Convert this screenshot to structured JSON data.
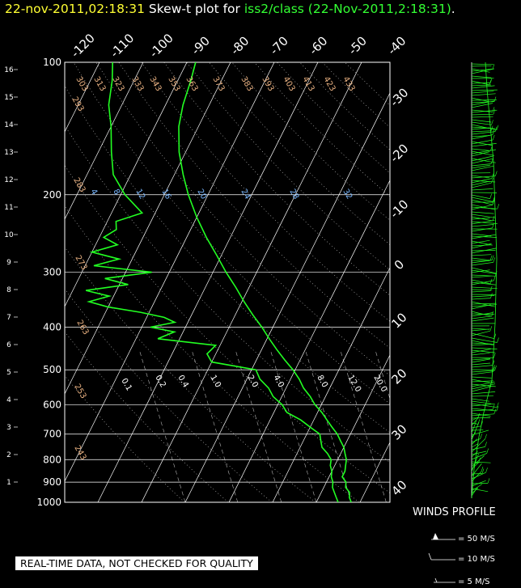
{
  "header": {
    "time": "22-nov-2011,02:18:31",
    "mid": " Skew-t plot for ",
    "source": "iss2/class (22-Nov-2011,2:18:31)",
    "end": "."
  },
  "disclaimer": "REAL-TIME DATA, NOT CHECKED FOR QUALITY",
  "winds": {
    "title": "WINDS PROFILE",
    "legend": [
      "= 50 M/S",
      "= 10 M/S",
      "= 5 M/S"
    ]
  },
  "colors": {
    "trace": "#22ff22",
    "grid": "#ffffff",
    "theta": "#e8b080",
    "mixing": "#7ab8ff",
    "label_white": "#ffffff"
  },
  "chart_data": {
    "type": "line",
    "title": "",
    "y_pressure_ticks": [
      100,
      200,
      300,
      400,
      500,
      600,
      700,
      800,
      900,
      1000
    ],
    "height_km_ticks": [
      1,
      2,
      3,
      4,
      5,
      6,
      7,
      8,
      9,
      10,
      11,
      12,
      13,
      14,
      15,
      16
    ],
    "temp_ticks_top": [
      "-120",
      "-110",
      "-100",
      "-90",
      "-80",
      "-70",
      "-60",
      "-50",
      "-40"
    ],
    "temp_ticks_right": [
      "-30",
      "-20",
      "-10",
      "0",
      "10",
      "20",
      "30",
      "40"
    ],
    "theta_labels": [
      "303",
      "313",
      "323",
      "333",
      "343",
      "353",
      "363",
      "373",
      "383",
      "393",
      "403",
      "413",
      "423",
      "433",
      "293",
      "283",
      "273",
      "263",
      "253",
      "243"
    ],
    "mixing_labels_upper": [
      "4",
      "8",
      "12",
      "16",
      "20",
      "24",
      "28",
      "32"
    ],
    "mixing_labels_lower": [
      "0.1",
      "0.2",
      "0.4",
      "1.0",
      "2.0",
      "4.0",
      "8.0",
      "12.0",
      "20.0"
    ],
    "ylim": [
      1000,
      100
    ],
    "series": [
      {
        "key": "temperature",
        "points": [
          [
            1000,
            8
          ],
          [
            975,
            7
          ],
          [
            950,
            6.5
          ],
          [
            925,
            5
          ],
          [
            900,
            4.5
          ],
          [
            875,
            3
          ],
          [
            850,
            3
          ],
          [
            825,
            2.5
          ],
          [
            800,
            2
          ],
          [
            775,
            1
          ],
          [
            750,
            0
          ],
          [
            725,
            -1.5
          ],
          [
            700,
            -3
          ],
          [
            675,
            -5
          ],
          [
            650,
            -7
          ],
          [
            625,
            -9
          ],
          [
            600,
            -11.5
          ],
          [
            575,
            -13.5
          ],
          [
            550,
            -16
          ],
          [
            525,
            -18
          ],
          [
            500,
            -20.5
          ],
          [
            475,
            -23.5
          ],
          [
            450,
            -26.5
          ],
          [
            425,
            -29.5
          ],
          [
            400,
            -32.5
          ],
          [
            375,
            -36
          ],
          [
            350,
            -39.5
          ],
          [
            325,
            -43
          ],
          [
            300,
            -47
          ],
          [
            275,
            -51
          ],
          [
            250,
            -55.5
          ],
          [
            225,
            -60
          ],
          [
            200,
            -64.5
          ],
          [
            180,
            -68
          ],
          [
            160,
            -71.5
          ],
          [
            140,
            -74.5
          ],
          [
            125,
            -76
          ],
          [
            110,
            -77
          ],
          [
            100,
            -78
          ]
        ]
      },
      {
        "key": "dewpoint",
        "points": [
          [
            1000,
            5
          ],
          [
            975,
            4
          ],
          [
            950,
            3
          ],
          [
            925,
            2
          ],
          [
            900,
            1.5
          ],
          [
            875,
            0.5
          ],
          [
            850,
            0
          ],
          [
            825,
            -1
          ],
          [
            800,
            -1.5
          ],
          [
            775,
            -3
          ],
          [
            750,
            -5
          ],
          [
            725,
            -6
          ],
          [
            700,
            -7
          ],
          [
            675,
            -10
          ],
          [
            650,
            -13
          ],
          [
            625,
            -17
          ],
          [
            600,
            -19
          ],
          [
            575,
            -22
          ],
          [
            550,
            -24
          ],
          [
            525,
            -27
          ],
          [
            500,
            -29
          ],
          [
            480,
            -40
          ],
          [
            460,
            -42
          ],
          [
            440,
            -41
          ],
          [
            425,
            -55
          ],
          [
            410,
            -52
          ],
          [
            400,
            -58
          ],
          [
            390,
            -53
          ],
          [
            380,
            -56
          ],
          [
            370,
            -62
          ],
          [
            360,
            -70
          ],
          [
            350,
            -75
          ],
          [
            340,
            -71
          ],
          [
            330,
            -77
          ],
          [
            320,
            -68
          ],
          [
            310,
            -74
          ],
          [
            300,
            -64
          ],
          [
            290,
            -78
          ],
          [
            280,
            -73
          ],
          [
            270,
            -80
          ],
          [
            260,
            -75
          ],
          [
            250,
            -79
          ],
          [
            240,
            -77
          ],
          [
            230,
            -78
          ],
          [
            220,
            -73
          ],
          [
            200,
            -79
          ],
          [
            180,
            -84
          ],
          [
            160,
            -87
          ],
          [
            140,
            -90
          ],
          [
            125,
            -93
          ],
          [
            110,
            -95
          ],
          [
            100,
            -97
          ]
        ]
      }
    ]
  }
}
